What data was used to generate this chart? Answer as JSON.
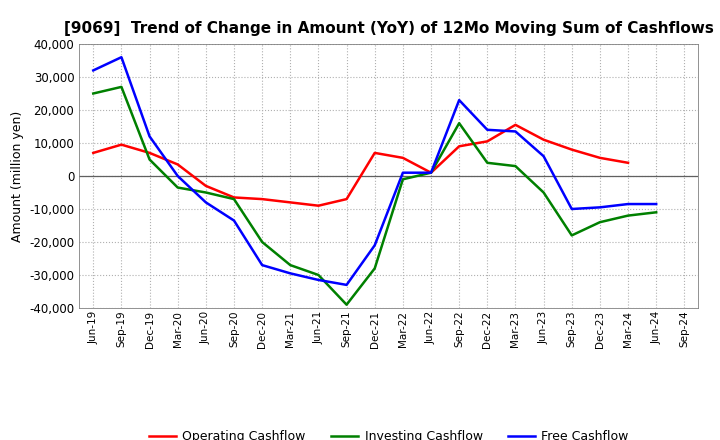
{
  "title": "[9069]  Trend of Change in Amount (YoY) of 12Mo Moving Sum of Cashflows",
  "ylabel": "Amount (million yen)",
  "x_labels": [
    "Jun-19",
    "Sep-19",
    "Dec-19",
    "Mar-20",
    "Jun-20",
    "Sep-20",
    "Dec-20",
    "Mar-21",
    "Jun-21",
    "Sep-21",
    "Dec-21",
    "Mar-22",
    "Jun-22",
    "Sep-22",
    "Dec-22",
    "Mar-23",
    "Jun-23",
    "Sep-23",
    "Dec-23",
    "Mar-24",
    "Jun-24",
    "Sep-24"
  ],
  "operating": [
    7000,
    9500,
    7000,
    3500,
    -3000,
    -6500,
    -7000,
    -8000,
    -9000,
    -7000,
    7000,
    5500,
    1000,
    9000,
    10500,
    15500,
    11000,
    8000,
    5500,
    4000,
    null,
    null
  ],
  "investing": [
    25000,
    27000,
    5000,
    -3500,
    -5000,
    -7000,
    -20000,
    -27000,
    -30000,
    -39000,
    -28000,
    -1000,
    1000,
    16000,
    4000,
    3000,
    -5000,
    -18000,
    -14000,
    -12000,
    -11000,
    null
  ],
  "free": [
    32000,
    36000,
    12000,
    0,
    -8000,
    -13500,
    -27000,
    -29500,
    -31500,
    -33000,
    -21000,
    1000,
    1000,
    23000,
    14000,
    13500,
    6000,
    -10000,
    -9500,
    -8500,
    -8500,
    null
  ],
  "operating_color": "#ff0000",
  "investing_color": "#008000",
  "free_color": "#0000ff",
  "ylim": [
    -40000,
    40000
  ],
  "yticks": [
    -40000,
    -30000,
    -20000,
    -10000,
    0,
    10000,
    20000,
    30000,
    40000
  ],
  "background_color": "#ffffff",
  "grid_color": "#b0b0b0"
}
